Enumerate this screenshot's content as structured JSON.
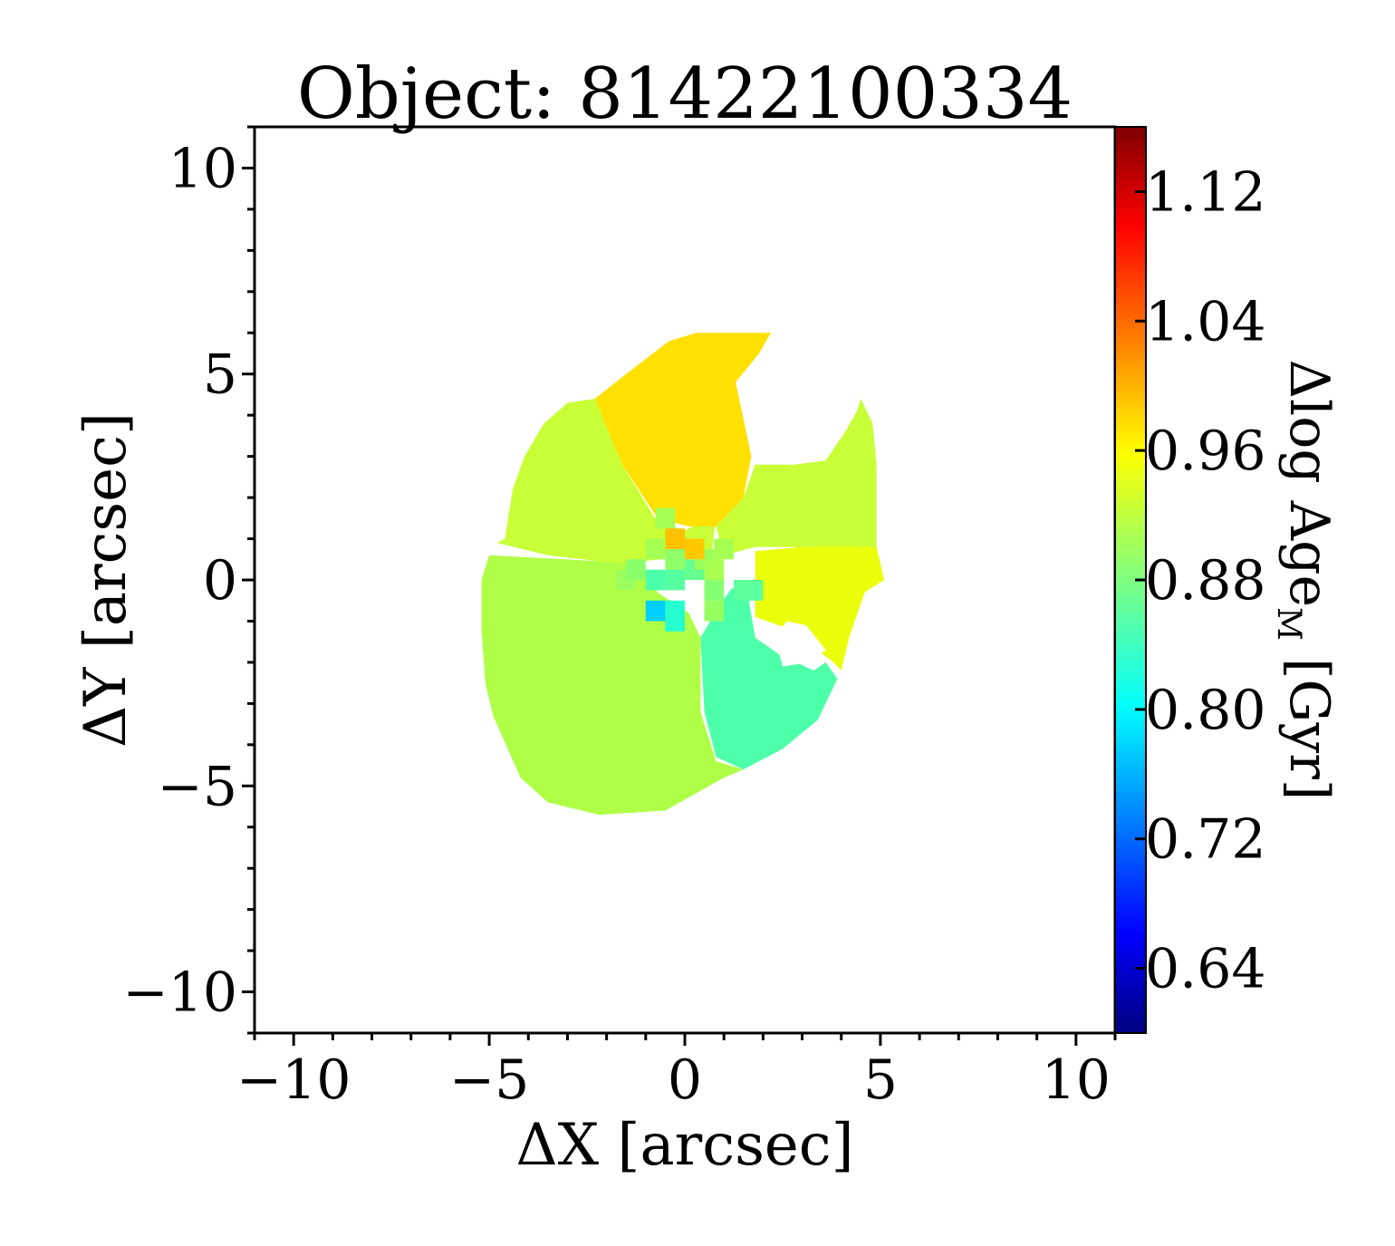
{
  "chart_data": {
    "type": "heatmap",
    "title": "Object: 81422100334",
    "xlabel": "ΔX [arcsec]",
    "ylabel": "ΔY [arcsec]",
    "colorbar_label": "Δlog Age",
    "colorbar_label_sub": "M",
    "colorbar_label_unit": " [Gyr]",
    "colormap": "jet",
    "xlim": [
      -11,
      11
    ],
    "ylim": [
      -11,
      11
    ],
    "xticks": [
      -10,
      -5,
      0,
      5,
      10
    ],
    "xtick_labels": [
      "−10",
      "−5",
      "0",
      "5",
      "10"
    ],
    "yticks": [
      -10,
      -5,
      0,
      5,
      10
    ],
    "ytick_labels": [
      "−10",
      "−5",
      "0",
      "5",
      "10"
    ],
    "clim": [
      0.6,
      1.16
    ],
    "cticks": [
      0.64,
      0.72,
      0.8,
      0.88,
      0.96,
      1.04,
      1.12
    ],
    "ctick_labels": [
      "0.64",
      "0.72",
      "0.80",
      "0.88",
      "0.96",
      "1.04",
      "1.12"
    ],
    "grid": false,
    "regions": [
      {
        "name": "south-west",
        "value": 0.915,
        "color": "#afff47",
        "outline": [
          [
            -5.0,
            0.6
          ],
          [
            -1.1,
            0.4
          ],
          [
            -0.7,
            -0.3
          ],
          [
            0.1,
            -0.8
          ],
          [
            0.4,
            -1.4
          ],
          [
            0.4,
            -3.2
          ],
          [
            0.8,
            -4.4
          ],
          [
            1.5,
            -4.6
          ],
          [
            1.0,
            -4.8
          ],
          [
            -0.5,
            -5.6
          ],
          [
            -2.2,
            -5.7
          ],
          [
            -3.5,
            -5.4
          ],
          [
            -4.2,
            -4.8
          ],
          [
            -4.9,
            -3.3
          ],
          [
            -5.1,
            -2.5
          ],
          [
            -5.2,
            -1.2
          ],
          [
            -5.2,
            0.0
          ]
        ]
      },
      {
        "name": "north-west",
        "value": 0.935,
        "color": "#c8ff37",
        "outline": [
          [
            -4.6,
            1.0
          ],
          [
            -4.4,
            2.2
          ],
          [
            -4.1,
            3.0
          ],
          [
            -3.6,
            3.8
          ],
          [
            -3.0,
            4.3
          ],
          [
            -2.3,
            4.4
          ],
          [
            -1.6,
            2.8
          ],
          [
            -0.7,
            1.4
          ],
          [
            0.0,
            1.2
          ],
          [
            0.8,
            1.6
          ],
          [
            0.7,
            0.7
          ],
          [
            -0.6,
            0.5
          ],
          [
            -1.7,
            0.4
          ],
          [
            -3.5,
            0.6
          ],
          [
            -4.8,
            0.9
          ]
        ]
      },
      {
        "name": "north-core-cap",
        "value": 1.0,
        "color": "#ffe000",
        "outline": [
          [
            -2.3,
            4.4
          ],
          [
            -1.5,
            5.0
          ],
          [
            -0.4,
            5.8
          ],
          [
            0.3,
            6.0
          ],
          [
            2.2,
            6.0
          ],
          [
            1.9,
            5.5
          ],
          [
            1.3,
            4.8
          ],
          [
            1.5,
            3.9
          ],
          [
            1.7,
            3.0
          ],
          [
            1.5,
            2.0
          ],
          [
            0.8,
            1.3
          ],
          [
            0.1,
            1.3
          ],
          [
            -0.7,
            1.5
          ],
          [
            -1.6,
            2.8
          ]
        ]
      },
      {
        "name": "east-upper",
        "value": 0.935,
        "color": "#c8ff37",
        "outline": [
          [
            1.5,
            2.0
          ],
          [
            1.8,
            2.8
          ],
          [
            2.8,
            2.8
          ],
          [
            3.6,
            2.9
          ],
          [
            4.1,
            3.6
          ],
          [
            4.4,
            4.1
          ],
          [
            4.5,
            4.4
          ],
          [
            4.8,
            3.8
          ],
          [
            4.9,
            2.8
          ],
          [
            4.9,
            0.6
          ],
          [
            2.8,
            0.8
          ],
          [
            1.8,
            0.8
          ],
          [
            1.0,
            0.6
          ],
          [
            0.8,
            1.3
          ]
        ]
      },
      {
        "name": "east-lower",
        "value": 0.965,
        "color": "#eaff0c",
        "outline": [
          [
            1.8,
            0.7
          ],
          [
            3.0,
            0.8
          ],
          [
            4.9,
            0.8
          ],
          [
            5.1,
            0.0
          ],
          [
            4.6,
            -0.3
          ],
          [
            4.2,
            -1.4
          ],
          [
            4.0,
            -2.2
          ],
          [
            3.8,
            -2.0
          ],
          [
            2.7,
            -1.2
          ],
          [
            1.8,
            -0.9
          ]
        ]
      },
      {
        "name": "south-east",
        "value": 0.845,
        "color": "#4effaa",
        "outline": [
          [
            1.6,
            -0.3
          ],
          [
            1.8,
            -1.4
          ],
          [
            2.4,
            -1.8
          ],
          [
            3.3,
            -2.2
          ],
          [
            3.6,
            -2.0
          ],
          [
            3.9,
            -2.4
          ],
          [
            3.4,
            -3.4
          ],
          [
            2.5,
            -4.1
          ],
          [
            1.5,
            -4.6
          ],
          [
            0.8,
            -4.3
          ],
          [
            0.5,
            -3.2
          ],
          [
            0.4,
            -1.4
          ],
          [
            0.9,
            -0.6
          ],
          [
            1.2,
            -0.2
          ]
        ]
      },
      {
        "name": "south-east-hole",
        "value": null,
        "color": "#ffffff",
        "outline": [
          [
            2.3,
            -1.4
          ],
          [
            2.6,
            -1.0
          ],
          [
            3.1,
            -1.1
          ],
          [
            3.6,
            -1.7
          ],
          [
            3.2,
            -2.0
          ],
          [
            2.5,
            -2.1
          ]
        ]
      }
    ],
    "spaxels": [
      {
        "x": -0.75,
        "y": -0.75,
        "value": 0.78,
        "color": "#00d0ff"
      },
      {
        "x": -0.25,
        "y": -0.75,
        "value": 0.83,
        "color": "#26ffd0"
      },
      {
        "x": -0.25,
        "y": -1.0,
        "value": 0.83,
        "color": "#26ffd0"
      },
      {
        "x": -0.75,
        "y": 0.0,
        "value": 0.86,
        "color": "#4cffaa"
      },
      {
        "x": -0.25,
        "y": 0.0,
        "value": 0.87,
        "color": "#56ffa0"
      },
      {
        "x": 0.25,
        "y": 0.25,
        "value": 0.88,
        "color": "#66ff90"
      },
      {
        "x": 0.75,
        "y": -0.25,
        "value": 0.9,
        "color": "#86ff70"
      },
      {
        "x": 1.5,
        "y": -0.25,
        "value": 0.87,
        "color": "#5cff9a"
      },
      {
        "x": 0.75,
        "y": -0.75,
        "value": 0.91,
        "color": "#96ff60"
      },
      {
        "x": -1.5,
        "y": 0.0,
        "value": 0.91,
        "color": "#9aff5c"
      },
      {
        "x": -1.25,
        "y": 0.25,
        "value": 0.9,
        "color": "#8aff6c"
      },
      {
        "x": -0.75,
        "y": 0.75,
        "value": 0.92,
        "color": "#a5ff52"
      },
      {
        "x": -0.25,
        "y": 0.5,
        "value": 0.9,
        "color": "#8fff68"
      },
      {
        "x": 0.5,
        "y": 0.5,
        "value": 0.91,
        "color": "#9aff5c"
      },
      {
        "x": 1.0,
        "y": 0.75,
        "value": 0.92,
        "color": "#a5ff52"
      },
      {
        "x": -0.5,
        "y": 1.5,
        "value": 0.92,
        "color": "#a5ff52"
      },
      {
        "x": -0.25,
        "y": 1.0,
        "value": 0.93,
        "color": "#b5ff42"
      },
      {
        "x": 0.25,
        "y": 0.75,
        "value": 1.0,
        "color": "#ffc800"
      },
      {
        "x": -0.25,
        "y": 1.0,
        "value": 1.01,
        "color": "#ffc000"
      },
      {
        "x": 0.75,
        "y": 0.25,
        "value": 0.92,
        "color": "#a8ff50"
      },
      {
        "x": 1.75,
        "y": -0.25,
        "value": 0.87,
        "color": "#5cff9a"
      }
    ]
  }
}
